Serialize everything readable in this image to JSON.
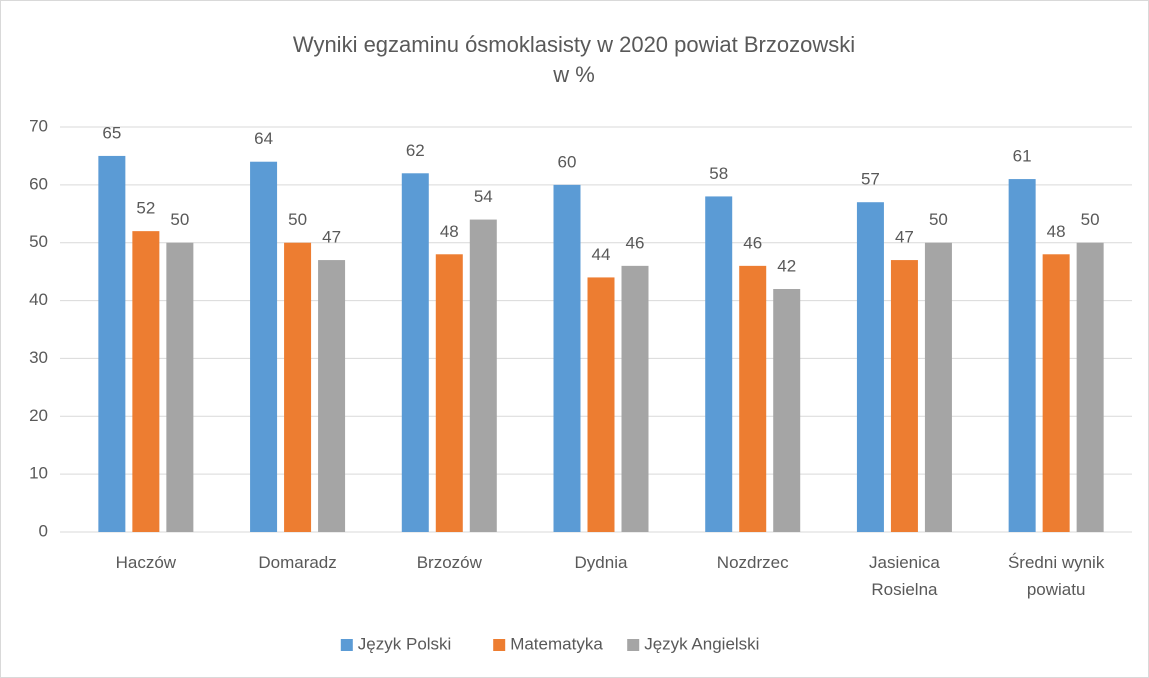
{
  "chart_data": {
    "type": "bar",
    "title": "Wyniki egzaminu ósmoklasisty w 2020 powiat Brzozowski",
    "subtitle": "w %",
    "categories": [
      "Haczów",
      "Domaradz",
      "Brzozów",
      "Dydnia",
      "Nozdrzec",
      "Jasienica Rosielna",
      "Średni wynik powiatu"
    ],
    "series": [
      {
        "name": "Język Polski",
        "color": "#5b9bd5",
        "values": [
          65,
          64,
          62,
          60,
          58,
          57,
          61
        ]
      },
      {
        "name": "Matematyka",
        "color": "#ed7d31",
        "values": [
          52,
          50,
          48,
          44,
          46,
          47,
          48
        ]
      },
      {
        "name": "Język Angielski",
        "color": "#a5a5a5",
        "values": [
          50,
          47,
          54,
          46,
          42,
          50,
          50
        ]
      }
    ],
    "ylim": [
      0,
      70
    ],
    "yticks": [
      0,
      10,
      20,
      30,
      40,
      50,
      60,
      70
    ],
    "grid": true,
    "legend": "bottom"
  }
}
